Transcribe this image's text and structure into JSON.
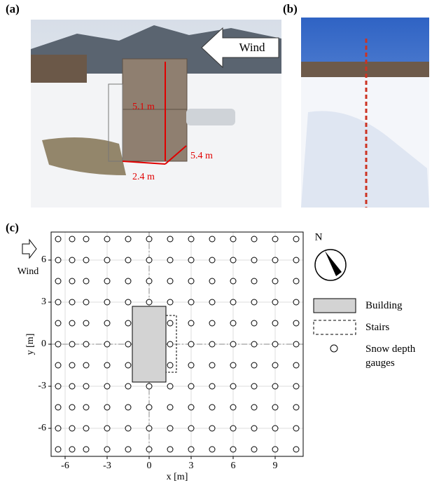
{
  "panel_labels": [
    "(a)",
    "(b)",
    "(c)"
  ],
  "photo_a": {
    "wind": "Wind",
    "height": "5.1 m",
    "depth": "5.4 m",
    "width": "2.4 m"
  },
  "chart_data": {
    "type": "scatter",
    "xlabel": "x [m]",
    "ylabel": "y [m]",
    "wind": "Wind",
    "north": "N",
    "xlim": [
      -7,
      11
    ],
    "ylim": [
      -8,
      8
    ],
    "xticks": [
      -6,
      -3,
      0,
      3,
      6,
      9
    ],
    "yticks": [
      -6,
      -3,
      0,
      3,
      6
    ],
    "grid": true,
    "building": {
      "name": "Building",
      "x": [
        -1.2,
        1.2
      ],
      "y": [
        -2.7,
        2.7
      ],
      "color": "#d3d3d3"
    },
    "stairs": {
      "name": "Stairs",
      "x": [
        1.2,
        1.95
      ],
      "y": [
        -2,
        2.05
      ]
    },
    "series": [
      {
        "name": "Snow depth gauges",
        "x": [
          -6.5,
          -5.5,
          -4.5,
          -3,
          -1.5,
          0,
          1.5,
          3,
          4.5,
          6,
          7.5,
          9,
          10.5,
          -6.5,
          -5.5,
          -4.5,
          -3,
          -1.5,
          0,
          1.5,
          3,
          4.5,
          6,
          7.5,
          9,
          10.5,
          -6.5,
          -5.5,
          -4.5,
          -3,
          -1.5,
          0,
          1.5,
          3,
          4.5,
          6,
          7.5,
          9,
          10.5,
          -6.5,
          -5.5,
          -4.5,
          -3,
          -1.5,
          0,
          1.5,
          3,
          4.5,
          6,
          7.5,
          9,
          10.5,
          -6.5,
          -5.5,
          -4.5,
          -3,
          -1.5,
          1.5,
          3,
          4.5,
          6,
          7.5,
          9,
          10.5,
          -6.5,
          -5.5,
          -4.5,
          -3,
          -1.5,
          1.5,
          3,
          4.5,
          6,
          7.5,
          9,
          10.5,
          -6.5,
          -5.5,
          -4.5,
          -3,
          -1.5,
          1.5,
          3,
          4.5,
          6,
          7.5,
          9,
          10.5,
          -6.5,
          -5.5,
          -4.5,
          -3,
          -1.5,
          0,
          1.5,
          3,
          4.5,
          6,
          7.5,
          9,
          10.5,
          -6.5,
          -5.5,
          -4.5,
          -3,
          -1.5,
          0,
          1.5,
          3,
          4.5,
          6,
          7.5,
          9,
          10.5,
          -6.5,
          -5.5,
          -4.5,
          -3,
          -1.5,
          0,
          1.5,
          3,
          4.5,
          6,
          7.5,
          9,
          10.5,
          -6.5,
          -5.5,
          -4.5,
          -3,
          -1.5,
          0,
          1.5,
          3,
          4.5,
          6,
          7.5,
          9,
          10.5
        ],
        "values": [
          7.5,
          7.5,
          7.5,
          7.5,
          7.5,
          7.5,
          7.5,
          7.5,
          7.5,
          7.5,
          7.5,
          7.5,
          7.5,
          6,
          6,
          6,
          6,
          6,
          6,
          6,
          6,
          6,
          6,
          6,
          6,
          6,
          4.5,
          4.5,
          4.5,
          4.5,
          4.5,
          4.5,
          4.5,
          4.5,
          4.5,
          4.5,
          4.5,
          4.5,
          4.5,
          3,
          3,
          3,
          3,
          3,
          3,
          3,
          3,
          3,
          3,
          3,
          3,
          3,
          1.5,
          1.5,
          1.5,
          1.5,
          1.5,
          1.5,
          1.5,
          1.5,
          1.5,
          1.5,
          1.5,
          1.5,
          0,
          0,
          0,
          0,
          0,
          0,
          0,
          0,
          0,
          0,
          0,
          0,
          -1.5,
          -1.5,
          -1.5,
          -1.5,
          -1.5,
          -1.5,
          -1.5,
          -1.5,
          -1.5,
          -1.5,
          -1.5,
          -1.5,
          -3,
          -3,
          -3,
          -3,
          -3,
          -3,
          -3,
          -3,
          -3,
          -3,
          -3,
          -3,
          -3,
          -4.5,
          -4.5,
          -4.5,
          -4.5,
          -4.5,
          -4.5,
          -4.5,
          -4.5,
          -4.5,
          -4.5,
          -4.5,
          -4.5,
          -4.5,
          -6,
          -6,
          -6,
          -6,
          -6,
          -6,
          -6,
          -6,
          -6,
          -6,
          -6,
          -6,
          -6,
          -7.5,
          -7.5,
          -7.5,
          -7.5,
          -7.5,
          -7.5,
          -7.5,
          -7.5,
          -7.5,
          -7.5,
          -7.5,
          -7.5,
          -7.5
        ]
      }
    ]
  }
}
